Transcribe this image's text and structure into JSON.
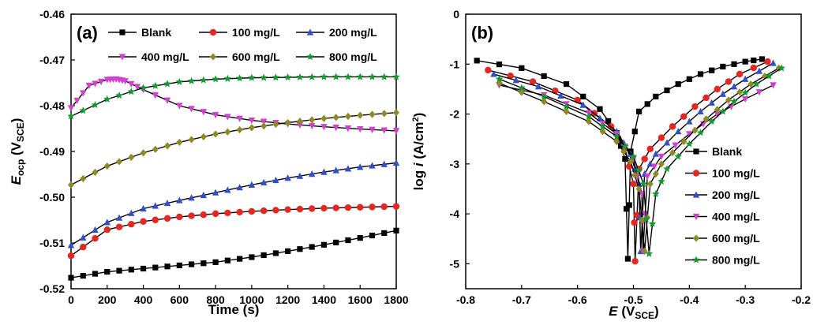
{
  "chart_data": [
    {
      "type": "line",
      "panel_label": "(a)",
      "xlabel": "Time (s)",
      "ylabel": {
        "main": "E",
        "sub1": "ocp",
        "mid": " (V",
        "sub2": "SCE",
        "end": ")"
      },
      "xlim": [
        0,
        1800
      ],
      "ylim": [
        -0.52,
        -0.46
      ],
      "xticks": [
        "0",
        "200",
        "400",
        "600",
        "800",
        "1000",
        "1200",
        "1400",
        "1600",
        "1800"
      ],
      "yticks": [
        "-0.46",
        "-0.47",
        "-0.48",
        "-0.49",
        "-0.50",
        "-0.51",
        "-0.52"
      ],
      "legend": "top, two rows",
      "series": [
        {
          "name": "Blank",
          "color": "#000000",
          "marker": "square",
          "x": [
            0,
            200,
            400,
            600,
            800,
            1000,
            1200,
            1400,
            1600,
            1800
          ],
          "y": [
            -0.5176,
            -0.5163,
            -0.5156,
            -0.5149,
            -0.5142,
            -0.5131,
            -0.5118,
            -0.5104,
            -0.5089,
            -0.5073
          ]
        },
        {
          "name": "100 mg/L",
          "color": "#e8261f",
          "marker": "circle",
          "x": [
            0,
            200,
            400,
            600,
            800,
            1000,
            1200,
            1400,
            1600,
            1800
          ],
          "y": [
            -0.5128,
            -0.5071,
            -0.5053,
            -0.5043,
            -0.5036,
            -0.5031,
            -0.5027,
            -0.5024,
            -0.5022,
            -0.502
          ]
        },
        {
          "name": "200 mg/L",
          "color": "#2f4fcf",
          "marker": "triangle-up",
          "x": [
            0,
            200,
            400,
            600,
            800,
            1000,
            1200,
            1400,
            1600,
            1800
          ],
          "y": [
            -0.5105,
            -0.5055,
            -0.5025,
            -0.5007,
            -0.499,
            -0.4973,
            -0.4958,
            -0.4945,
            -0.4934,
            -0.4925
          ]
        },
        {
          "name": "400 mg/L",
          "color": "#d43fd0",
          "marker": "triangle-down",
          "x": [
            0,
            100,
            200,
            250,
            300,
            400,
            600,
            800,
            1000,
            1200,
            1400,
            1600,
            1800
          ],
          "y": [
            -0.4805,
            -0.4756,
            -0.4743,
            -0.4742,
            -0.4746,
            -0.4765,
            -0.48,
            -0.482,
            -0.4832,
            -0.484,
            -0.4846,
            -0.4851,
            -0.4855
          ]
        },
        {
          "name": "600 mg/L",
          "color": "#8e8a1e",
          "marker": "diamond",
          "x": [
            0,
            200,
            400,
            600,
            800,
            1000,
            1200,
            1400,
            1600,
            1800
          ],
          "y": [
            -0.4973,
            -0.4932,
            -0.4903,
            -0.488,
            -0.4862,
            -0.4848,
            -0.4837,
            -0.4828,
            -0.4821,
            -0.4815
          ]
        },
        {
          "name": "800 mg/L",
          "color": "#0e9c2f",
          "marker": "star",
          "x": [
            0,
            200,
            400,
            600,
            800,
            1000,
            1200,
            1400,
            1600,
            1800
          ],
          "y": [
            -0.4823,
            -0.4786,
            -0.4761,
            -0.4748,
            -0.4742,
            -0.4739,
            -0.4738,
            -0.4737,
            -0.4737,
            -0.4737
          ]
        }
      ]
    },
    {
      "type": "line",
      "panel_label": "(b)",
      "xlabel": {
        "main": "E",
        "mid": " (V",
        "sub": "SCE",
        "end": ")"
      },
      "ylabel": {
        "pre": "log ",
        "main": "i",
        "mid": " (A/cm",
        "sup": "2",
        "end": ")"
      },
      "xlim": [
        -0.8,
        -0.2
      ],
      "ylim": [
        -5.5,
        0
      ],
      "xticks": [
        "-0.8",
        "-0.7",
        "-0.6",
        "-0.5",
        "-0.4",
        "-0.3",
        "-0.2"
      ],
      "yticks": [
        "0",
        "-1",
        "-2",
        "-3",
        "-4",
        "-5"
      ],
      "legend": "right, lower",
      "series": [
        {
          "name": "Blank",
          "color": "#000000",
          "marker": "square",
          "x": [
            -0.78,
            -0.7,
            -0.62,
            -0.56,
            -0.53,
            -0.515,
            -0.51,
            -0.505,
            -0.49,
            -0.46,
            -0.42,
            -0.38,
            -0.34,
            -0.3,
            -0.27
          ],
          "y": [
            -0.93,
            -1.08,
            -1.4,
            -1.9,
            -2.38,
            -2.9,
            -4.9,
            -2.75,
            -1.95,
            -1.65,
            -1.4,
            -1.2,
            -1.05,
            -0.95,
            -0.9
          ]
        },
        {
          "name": "100 mg/L",
          "color": "#e8261f",
          "marker": "circle",
          "x": [
            -0.76,
            -0.68,
            -0.6,
            -0.54,
            -0.515,
            -0.5,
            -0.497,
            -0.49,
            -0.47,
            -0.43,
            -0.39,
            -0.35,
            -0.31,
            -0.26
          ],
          "y": [
            -1.12,
            -1.35,
            -1.72,
            -2.25,
            -2.7,
            -3.4,
            -4.95,
            -3.1,
            -2.7,
            -2.25,
            -1.85,
            -1.5,
            -1.2,
            -0.95
          ]
        },
        {
          "name": "200 mg/L",
          "color": "#2f4fcf",
          "marker": "triangle-up",
          "x": [
            -0.75,
            -0.67,
            -0.59,
            -0.53,
            -0.505,
            -0.49,
            -0.487,
            -0.48,
            -0.46,
            -0.42,
            -0.38,
            -0.34,
            -0.3,
            -0.25
          ],
          "y": [
            -1.2,
            -1.45,
            -1.82,
            -2.35,
            -2.8,
            -3.4,
            -4.75,
            -3.2,
            -2.8,
            -2.35,
            -1.95,
            -1.6,
            -1.3,
            -0.98
          ]
        },
        {
          "name": "400 mg/L",
          "color": "#d43fd0",
          "marker": "triangle-down",
          "x": [
            -0.74,
            -0.66,
            -0.58,
            -0.53,
            -0.5,
            -0.485,
            -0.483,
            -0.475,
            -0.45,
            -0.4,
            -0.35,
            -0.3,
            -0.25
          ],
          "y": [
            -1.42,
            -1.62,
            -1.98,
            -2.4,
            -2.9,
            -3.6,
            -4.75,
            -3.25,
            -2.85,
            -2.4,
            -2.0,
            -1.7,
            -1.42
          ]
        },
        {
          "name": "600 mg/L",
          "color": "#8e8a1e",
          "marker": "diamond",
          "x": [
            -0.74,
            -0.66,
            -0.58,
            -0.53,
            -0.505,
            -0.49,
            -0.48,
            -0.47,
            -0.45,
            -0.41,
            -0.37,
            -0.33,
            -0.29,
            -0.24
          ],
          "y": [
            -1.38,
            -1.75,
            -2.15,
            -2.55,
            -2.95,
            -3.5,
            -4.75,
            -3.4,
            -3.0,
            -2.55,
            -2.1,
            -1.72,
            -1.4,
            -1.08
          ]
        },
        {
          "name": "800 mg/L",
          "color": "#0e9c2f",
          "marker": "star",
          "x": [
            -0.74,
            -0.66,
            -0.58,
            -0.53,
            -0.5,
            -0.482,
            -0.472,
            -0.46,
            -0.44,
            -0.4,
            -0.36,
            -0.32,
            -0.28,
            -0.235
          ],
          "y": [
            -1.3,
            -1.65,
            -2.05,
            -2.45,
            -2.85,
            -3.4,
            -4.8,
            -3.6,
            -3.1,
            -2.6,
            -2.15,
            -1.75,
            -1.4,
            -1.08
          ]
        }
      ]
    }
  ]
}
